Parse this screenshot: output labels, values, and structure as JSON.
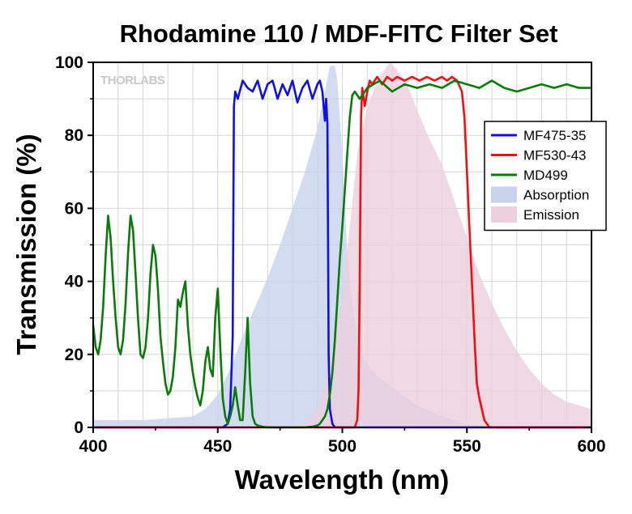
{
  "chart_data": {
    "type": "line",
    "title": "Rhodamine 110 / MDF-FITC Filter Set",
    "xlabel": "Wavelength (nm)",
    "ylabel": "Transmission (%)",
    "xlim": [
      400,
      600
    ],
    "ylim": [
      0,
      100
    ],
    "xticks": [
      400,
      450,
      500,
      550,
      600
    ],
    "yticks": [
      0,
      20,
      40,
      60,
      80,
      100
    ],
    "grid": true,
    "legend_position": "top-right",
    "watermark": "THORLABS",
    "series": [
      {
        "name": "MF475-35",
        "kind": "line",
        "color": "#1010e0",
        "x": [
          400,
          452,
          454,
          455,
          456,
          456.5,
          457,
          458,
          460,
          462,
          464,
          466,
          468,
          470,
          472,
          474,
          476,
          478,
          480,
          482,
          484,
          486,
          488,
          490,
          491,
          492,
          493,
          493.5,
          494,
          494.5,
          495,
          496,
          497,
          500,
          600
        ],
        "y": [
          0,
          0,
          1,
          5,
          25,
          88,
          92,
          90,
          95,
          93,
          92,
          95,
          90,
          94,
          95,
          90,
          94,
          91,
          95,
          89,
          93,
          95,
          90,
          94,
          95,
          92,
          84,
          90,
          83,
          20,
          5,
          1,
          0,
          0,
          0
        ]
      },
      {
        "name": "MF530-43",
        "kind": "line",
        "color": "#ee1010",
        "x": [
          400,
          505,
          506,
          506.5,
          507,
          507.5,
          508,
          509,
          510,
          511,
          512,
          514,
          516,
          518,
          520,
          522,
          525,
          528,
          531,
          534,
          537,
          540,
          542,
          544,
          546,
          548,
          549,
          550,
          551,
          552,
          553,
          554,
          555,
          556,
          557,
          558,
          559,
          560,
          600
        ],
        "y": [
          0,
          0,
          2,
          10,
          40,
          85,
          93,
          88,
          92,
          95,
          94,
          96,
          94,
          96,
          95,
          96,
          95,
          96,
          95,
          96,
          95,
          96,
          95,
          96,
          95,
          92,
          85,
          70,
          55,
          40,
          25,
          12,
          8,
          5,
          2,
          1,
          0,
          0,
          0
        ]
      },
      {
        "name": "MD499",
        "kind": "line",
        "color": "#0a7a0a",
        "x": [
          400,
          401,
          402,
          403,
          404,
          405,
          406,
          407,
          408,
          409,
          410,
          411,
          412,
          413,
          414,
          415,
          416,
          417,
          418,
          419,
          420,
          421,
          422,
          423,
          424,
          425,
          426,
          427,
          428,
          429,
          430,
          431,
          432,
          433,
          434,
          435,
          436,
          437,
          438,
          439,
          440,
          441,
          442,
          443,
          444,
          445,
          446,
          447,
          448,
          449,
          450,
          451,
          452,
          453,
          454,
          455,
          456,
          457,
          458,
          459,
          460,
          461,
          462,
          463,
          464,
          465,
          466,
          468,
          470,
          475,
          480,
          485,
          488,
          490,
          491,
          492,
          493,
          494,
          495,
          496,
          497,
          498,
          499,
          500,
          501,
          502,
          503,
          504,
          505,
          507,
          510,
          515,
          520,
          525,
          530,
          535,
          540,
          545,
          550,
          555,
          560,
          565,
          570,
          575,
          580,
          585,
          590,
          595,
          600
        ],
        "y": [
          28,
          22,
          20,
          24,
          33,
          47,
          58,
          52,
          40,
          30,
          22,
          20,
          24,
          34,
          48,
          58,
          54,
          42,
          30,
          20,
          19,
          22,
          30,
          42,
          50,
          47,
          38,
          25,
          18,
          12,
          9,
          10,
          14,
          22,
          35,
          33,
          37,
          40,
          28,
          20,
          15,
          11,
          8,
          6,
          10,
          18,
          22,
          16,
          14,
          30,
          38,
          22,
          8,
          3,
          1,
          3,
          6,
          11,
          6,
          2,
          2,
          15,
          30,
          12,
          3,
          1,
          0.5,
          0.2,
          0,
          0,
          0,
          0,
          0.2,
          0.5,
          1,
          2,
          3,
          5,
          9,
          15,
          24,
          35,
          46,
          55,
          65,
          75,
          85,
          91,
          92,
          90,
          93,
          95,
          92,
          94,
          93,
          94,
          93,
          95,
          94,
          93,
          95,
          93,
          92,
          93,
          94,
          93,
          94,
          93,
          93
        ]
      },
      {
        "name": "Absorption",
        "kind": "area",
        "color": "#c7d2ec",
        "x": [
          400,
          420,
          430,
          440,
          445,
          450,
          455,
          460,
          465,
          470,
          475,
          480,
          485,
          490,
          493,
          495,
          497,
          498,
          500,
          502,
          504,
          506,
          508,
          510,
          514,
          518,
          522,
          526,
          530,
          540,
          550,
          560,
          600
        ],
        "y": [
          2,
          2,
          2.5,
          3,
          5,
          9,
          16,
          25,
          33,
          41,
          50,
          60,
          70,
          82,
          92,
          99,
          99,
          95,
          75,
          48,
          34,
          25,
          20,
          17,
          14,
          12,
          10,
          8,
          6,
          3,
          1,
          0,
          0
        ]
      },
      {
        "name": "Emission",
        "kind": "area",
        "color": "#ecd0dd",
        "x": [
          400,
          480,
          485,
          490,
          493,
          496,
          500,
          503,
          506,
          510,
          513,
          516,
          519,
          522,
          526,
          530,
          535,
          540,
          545,
          550,
          555,
          560,
          565,
          570,
          575,
          580,
          585,
          590,
          595,
          600
        ],
        "y": [
          0,
          0,
          1,
          5,
          12,
          20,
          35,
          55,
          75,
          88,
          93,
          97,
          100,
          98,
          94,
          87,
          79,
          72,
          62,
          52,
          42,
          34,
          27,
          21,
          16,
          12,
          9,
          7,
          6,
          5
        ]
      }
    ]
  }
}
